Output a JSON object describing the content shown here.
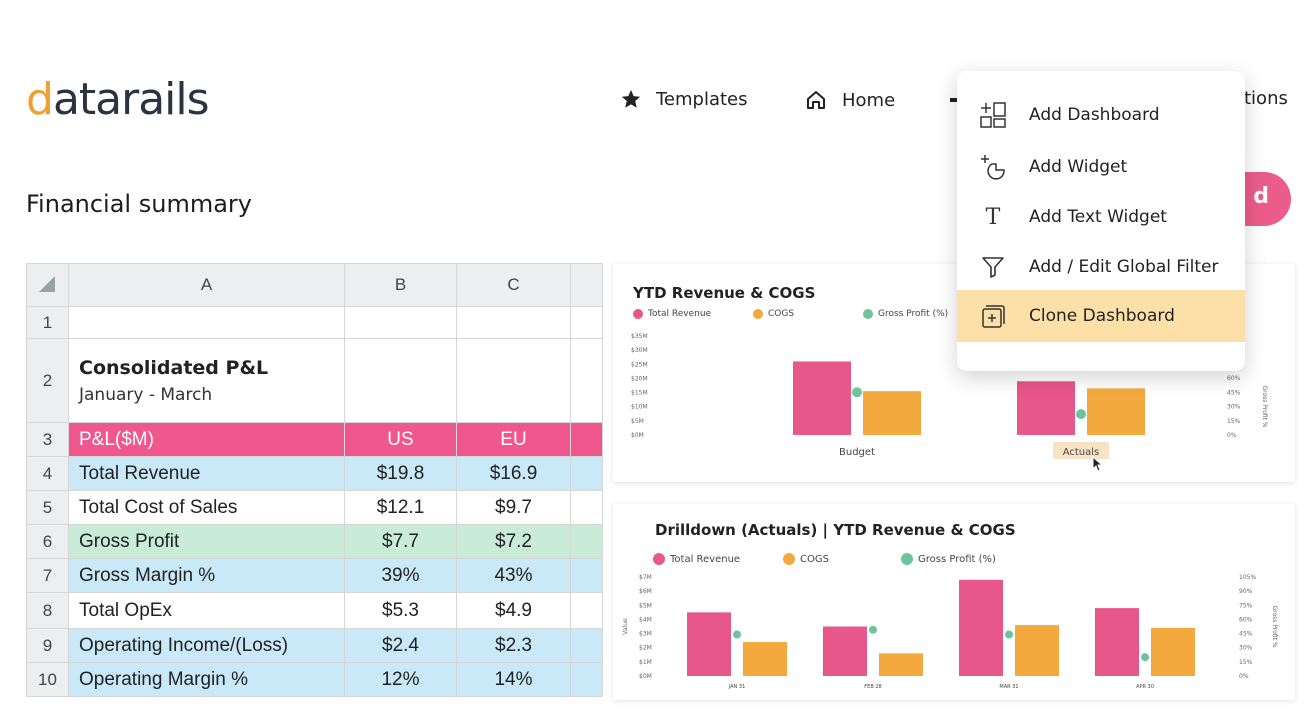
{
  "brand": {
    "logo_text": "datarails",
    "accent": "#f0a033"
  },
  "nav": {
    "templates": "Templates",
    "home": "Home",
    "partial": "tions"
  },
  "page": {
    "title": "Financial summary",
    "pink_button_partial": "d"
  },
  "sheet": {
    "col_headers": [
      "A",
      "B",
      "C"
    ],
    "row_numbers": [
      "1",
      "2",
      "3",
      "4",
      "5",
      "6",
      "7",
      "8",
      "9",
      "10"
    ],
    "heading": "Consolidated P&L",
    "subheading": "January - March",
    "header_row": {
      "label": "P&L($M)",
      "b": "US",
      "c": "EU"
    },
    "rows": [
      {
        "label": "Total Revenue",
        "b": "$19.8",
        "c": "$16.9"
      },
      {
        "label": "Total Cost of Sales",
        "b": "$12.1",
        "c": "$9.7"
      },
      {
        "label": "Gross Profit",
        "b": "$7.7",
        "c": "$7.2"
      },
      {
        "label": "Gross Margin %",
        "b": "39%",
        "c": "43%"
      },
      {
        "label": "Total OpEx",
        "b": "$5.3",
        "c": "$4.9"
      },
      {
        "label": "Operating Income/(Loss)",
        "b": "$2.4",
        "c": "$2.3"
      },
      {
        "label": "Operating Margin %",
        "b": "12%",
        "c": "14%"
      }
    ],
    "colors": {
      "pink": "#f0578c",
      "blue": "#c9e9f8",
      "green": "#c8ecd7"
    }
  },
  "menu": {
    "items": [
      {
        "label": "Add Dashboard",
        "icon": "add-dashboard-icon"
      },
      {
        "label": "Add Widget",
        "icon": "add-widget-icon"
      },
      {
        "label": "Add Text Widget",
        "icon": "text-icon"
      },
      {
        "label": "Add / Edit Global Filter",
        "icon": "filter-icon"
      },
      {
        "label": "Clone Dashboard",
        "icon": "clone-icon"
      }
    ],
    "selected": "Clone Dashboard",
    "selected_color": "#fde0a8"
  },
  "chart_data": [
    {
      "type": "bar",
      "title": "YTD Revenue & COGS",
      "categories": [
        "Budget",
        "Actuals"
      ],
      "series": [
        {
          "name": "Total Revenue",
          "values": [
            26,
            19
          ],
          "color": "#e8578a"
        },
        {
          "name": "COGS",
          "values": [
            15.5,
            16.5
          ],
          "color": "#f3a93d"
        },
        {
          "name": "Gross Profit (%)",
          "values": [
            45,
            22
          ],
          "axis": "right",
          "color": "#6cc49a"
        }
      ],
      "y_ticks": [
        "$35M",
        "$30M",
        "$25M",
        "$20M",
        "$15M",
        "$10M",
        "$5M",
        "$0M"
      ],
      "y_right_ticks": [
        "60%",
        "45%",
        "30%",
        "15%",
        "0%"
      ],
      "y_right_label": "Gross Profit %",
      "ylim": [
        0,
        35
      ],
      "highlighted_category": "Actuals"
    },
    {
      "type": "bar",
      "title": "Drilldown (Actuals) | YTD Revenue & COGS",
      "categories": [
        "JAN 31",
        "FEB 28",
        "MAR 31",
        "APR 30"
      ],
      "series": [
        {
          "name": "Total Revenue",
          "values": [
            4.5,
            3.5,
            6.8,
            4.8
          ],
          "color": "#e8578a"
        },
        {
          "name": "COGS",
          "values": [
            2.4,
            1.6,
            3.6,
            3.4
          ],
          "color": "#f3a93d"
        },
        {
          "name": "Gross Profit (%)",
          "values": [
            44,
            49,
            44,
            20
          ],
          "axis": "right",
          "color": "#6cc49a"
        }
      ],
      "ylabel": "Value",
      "y_ticks": [
        "$7M",
        "$6M",
        "$5M",
        "$4M",
        "$3M",
        "$2M",
        "$1M",
        "$0M"
      ],
      "y_right_ticks": [
        "105%",
        "90%",
        "75%",
        "60%",
        "45%",
        "30%",
        "15%",
        "0%"
      ],
      "y_right_label": "Gross Profit %",
      "ylim": [
        0,
        7
      ]
    }
  ]
}
